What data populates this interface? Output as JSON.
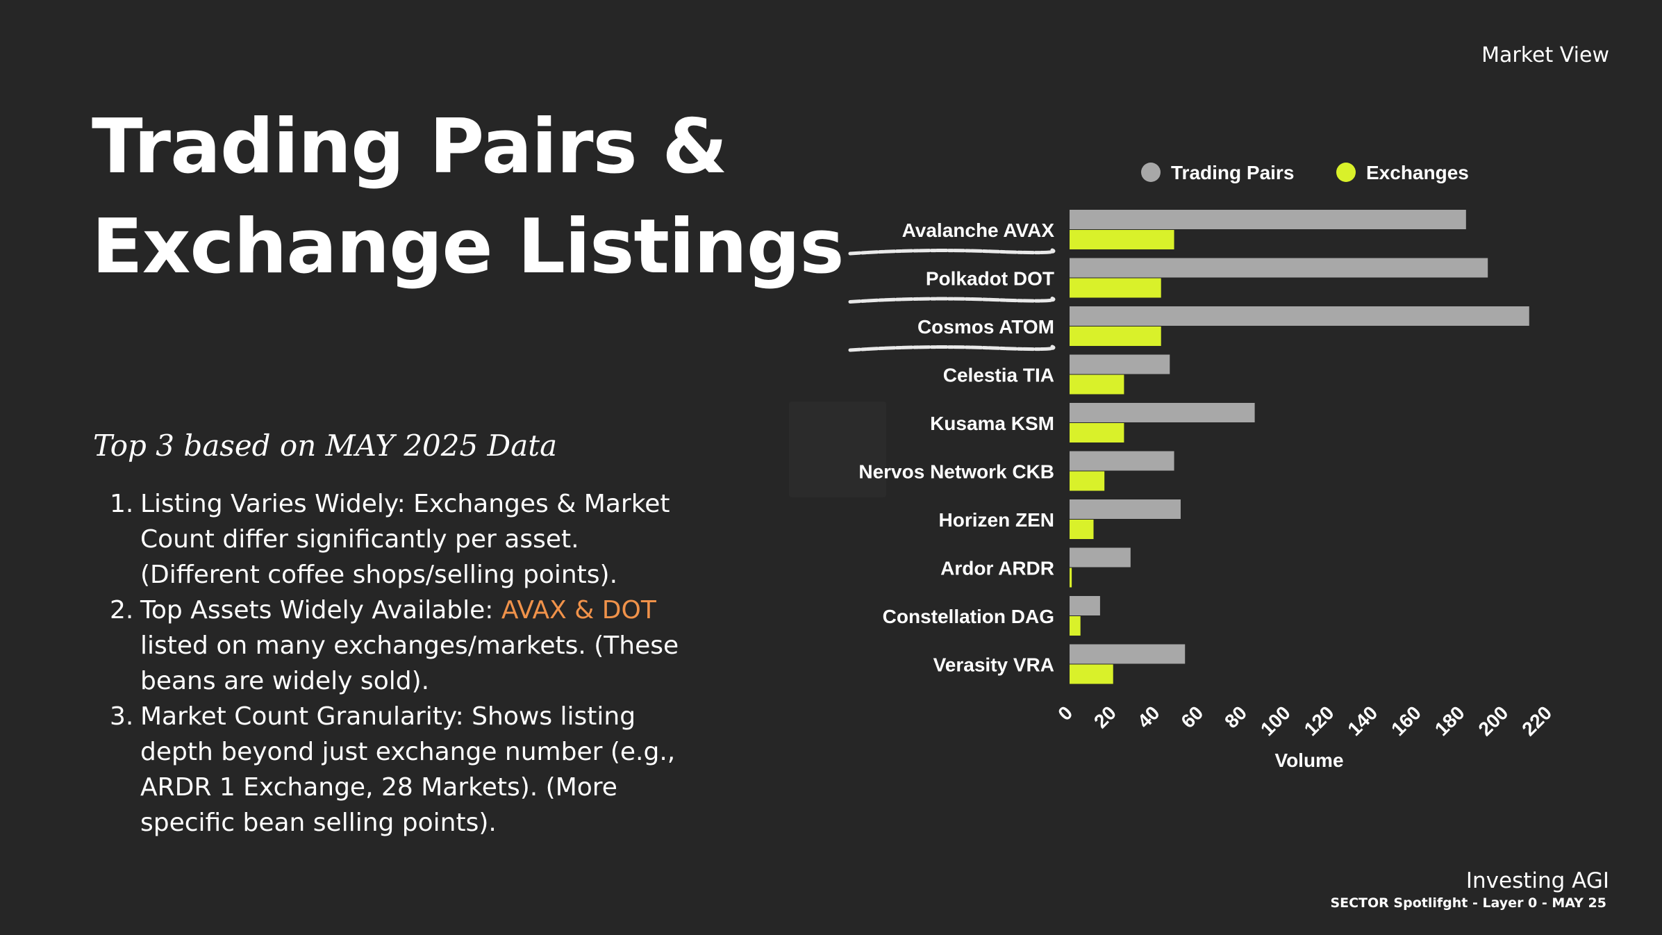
{
  "header": {
    "market_view": "Market View"
  },
  "title": {
    "line1": "Trading Pairs &",
    "line2": "Exchange Listings"
  },
  "subtitle": "Top 3 based on MAY 2025 Data",
  "points": [
    {
      "num": "1.",
      "text": "Listing Varies Widely: Exchanges & Market Count differ significantly per asset. (Different coffee shops/selling points)."
    },
    {
      "num": "2.",
      "pre": "Top Assets Widely Available: ",
      "highlight": "AVAX & DOT",
      "post": " listed on many exchanges/markets. (These beans are widely sold)."
    },
    {
      "num": "3.",
      "text": "Market Count Granularity: Shows listing depth beyond just exchange number (e.g., ARDR 1 Exchange, 28 Markets). (More specific bean selling points)."
    }
  ],
  "colors": {
    "background": "#262626",
    "trading_pairs": "#a8a8a8",
    "exchanges": "#d9f12a",
    "highlight": "#f0924a"
  },
  "chart_data": {
    "type": "bar",
    "orientation": "horizontal",
    "categories": [
      "Avalanche AVAX",
      "Polkadot DOT",
      "Cosmos ATOM",
      "Celestia TIA",
      "Kusama KSM",
      "Nervos Network CKB",
      "Horizen ZEN",
      "Ardor ARDR",
      "Constellation DAG",
      "Verasity VRA"
    ],
    "series": [
      {
        "name": "Trading Pairs",
        "color": "#a8a8a8",
        "values": [
          182,
          192,
          211,
          46,
          85,
          48,
          51,
          28,
          14,
          53
        ]
      },
      {
        "name": "Exchanges",
        "color": "#d9f12a",
        "values": [
          48,
          42,
          42,
          25,
          25,
          16,
          11,
          1,
          5,
          20
        ]
      }
    ],
    "xlabel": "Volume",
    "xlim": [
      0,
      220
    ],
    "xticks": [
      0,
      20,
      40,
      60,
      80,
      100,
      120,
      140,
      160,
      180,
      200,
      220
    ],
    "legend": "top"
  },
  "footer": {
    "brand": "Investing AGI",
    "sub": "SECTOR Spotlifght - Layer 0 - MAY 25"
  }
}
